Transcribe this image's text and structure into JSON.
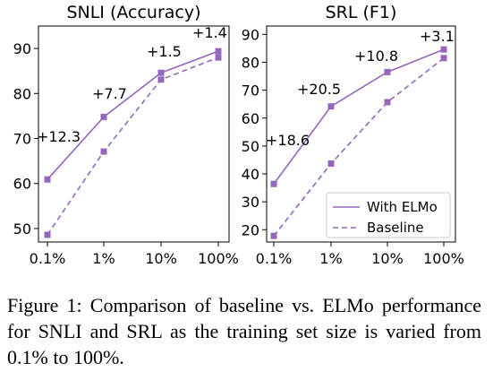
{
  "chart_data": [
    {
      "type": "line",
      "title": "SNLI (Accuracy)",
      "categories": [
        "0.1%",
        "1%",
        "10%",
        "100%"
      ],
      "yticks": [
        50,
        60,
        70,
        80,
        90
      ],
      "ylim": [
        47,
        95
      ],
      "series": [
        {
          "name": "With ELMo",
          "values": [
            60.9,
            74.8,
            84.6,
            89.4
          ],
          "style": "solid"
        },
        {
          "name": "Baseline",
          "values": [
            48.6,
            67.1,
            83.1,
            88.0
          ],
          "style": "dashed"
        }
      ],
      "annotations": [
        "+12.3",
        "+7.7",
        "+1.5",
        "+1.4"
      ]
    },
    {
      "type": "line",
      "title": "SRL (F1)",
      "categories": [
        "0.1%",
        "1%",
        "10%",
        "100%"
      ],
      "yticks": [
        20,
        30,
        40,
        50,
        60,
        70,
        80,
        90
      ],
      "ylim": [
        15.6,
        93
      ],
      "series": [
        {
          "name": "With ELMo",
          "values": [
            36.4,
            64.2,
            76.5,
            84.6
          ],
          "style": "solid"
        },
        {
          "name": "Baseline",
          "values": [
            17.8,
            43.7,
            65.7,
            81.5
          ],
          "style": "dashed"
        }
      ],
      "annotations": [
        "+18.6",
        "+20.5",
        "+10.8",
        "+3.1"
      ],
      "legend": "bottom-right"
    }
  ],
  "colors": {
    "series": "#9467bd"
  },
  "caption": "Figure 1: Comparison of baseline vs. ELMo performance for SNLI and SRL as the training set size is varied from 0.1% to 100%."
}
